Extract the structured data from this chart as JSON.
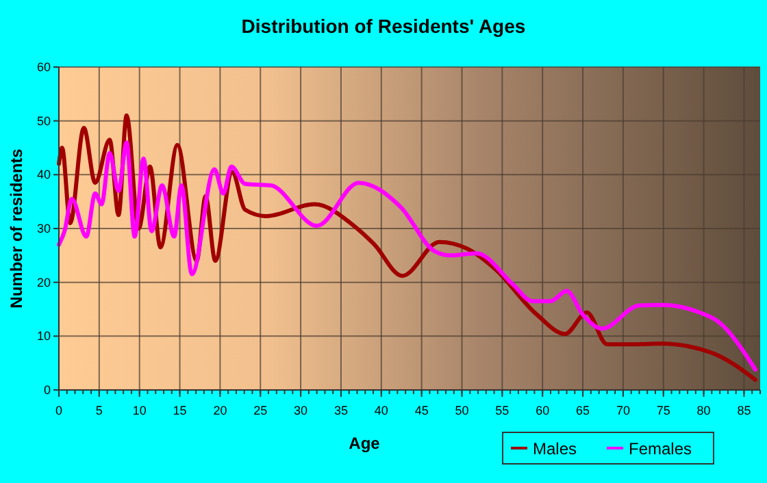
{
  "chart_data": {
    "type": "line",
    "title": "Distribution of Residents' Ages",
    "xlabel": "Age",
    "ylabel": "Number of residents",
    "xlim": [
      0,
      87
    ],
    "ylim": [
      0,
      60
    ],
    "xticks": [
      0,
      5,
      10,
      15,
      20,
      25,
      30,
      35,
      40,
      45,
      50,
      55,
      60,
      65,
      70,
      75,
      80,
      85
    ],
    "yticks": [
      0,
      10,
      20,
      30,
      40,
      50,
      60
    ],
    "grid": true,
    "legend": "bottom right",
    "marker": "none",
    "line_style": "solid",
    "series": [
      {
        "name": "Males",
        "color": "#a00000",
        "x": [
          0,
          0.4,
          1.4,
          3.1,
          4.5,
          6.3,
          7.4,
          8.4,
          9.9,
          11.3,
          12.6,
          14.7,
          17.1,
          18.2,
          19.4,
          21.5,
          23.1,
          25.7,
          31.7,
          36.6,
          39.1,
          42.6,
          47.2,
          50.6,
          54.1,
          59.3,
          62.8,
          65.5,
          68,
          71.5,
          74.8,
          79.5,
          81.8,
          86.4
        ],
        "values": [
          42,
          45,
          31,
          48.7,
          38.5,
          46.5,
          32.5,
          51,
          30,
          41.5,
          26.5,
          45.5,
          24,
          36,
          24,
          40.5,
          33.5,
          32.3,
          34.5,
          30.5,
          27.1,
          21.2,
          27.5,
          26.3,
          22.5,
          14,
          10.4,
          14.4,
          8.5,
          8.5,
          8.6,
          7.6,
          6.4,
          1.9
        ]
      },
      {
        "name": "Females",
        "color": "#ff00ff",
        "x": [
          0,
          0.7,
          1.6,
          3.4,
          4.5,
          5.3,
          6.3,
          7.4,
          8.4,
          9.4,
          10.5,
          11.5,
          12.8,
          14.3,
          15.2,
          16.5,
          19.3,
          20.4,
          21.4,
          23.1,
          26.3,
          32,
          37.2,
          42.4,
          46.6,
          48.6,
          51.8,
          56.4,
          58.7,
          61,
          63,
          65,
          67.4,
          72,
          74.8,
          79.5,
          81.8,
          86.4
        ],
        "values": [
          27,
          29.5,
          35.5,
          28.5,
          36.5,
          34.5,
          44,
          37,
          46,
          28.5,
          43,
          29.5,
          38,
          28.5,
          38,
          21.5,
          41,
          36.5,
          41.5,
          38.3,
          38,
          30.5,
          38.5,
          34,
          25.8,
          25,
          25.4,
          19.5,
          16.5,
          16.5,
          18.4,
          14,
          11.4,
          15.7,
          15.8,
          14.4,
          12.7,
          3.8
        ]
      }
    ]
  }
}
